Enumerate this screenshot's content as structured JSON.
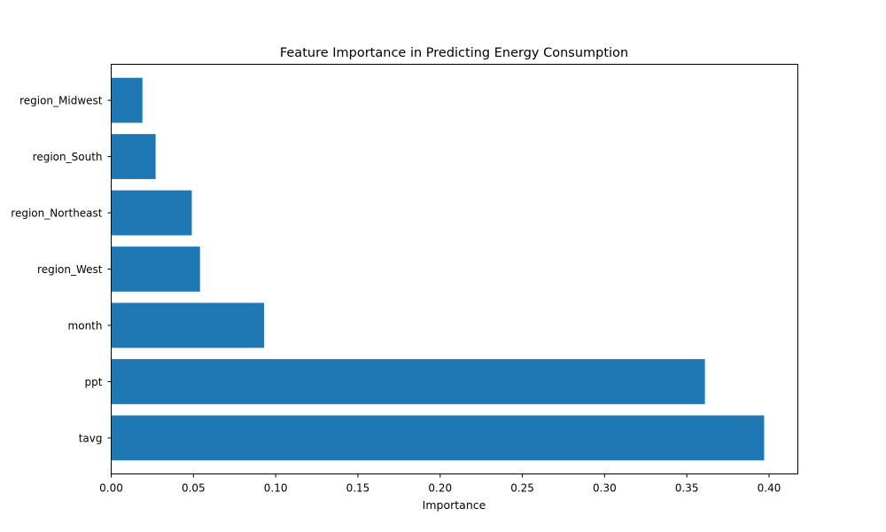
{
  "chart_data": {
    "type": "bar",
    "orientation": "horizontal",
    "title": "Feature Importance in Predicting Energy Consumption",
    "xlabel": "Importance",
    "ylabel": "",
    "categories": [
      "tavg",
      "ppt",
      "month",
      "region_West",
      "region_Northeast",
      "region_South",
      "region_Midwest"
    ],
    "values": [
      0.397,
      0.361,
      0.093,
      0.054,
      0.049,
      0.027,
      0.019
    ],
    "xlim": [
      0.0,
      0.4175
    ],
    "xticks": [
      0.0,
      0.05,
      0.1,
      0.15,
      0.2,
      0.25,
      0.3,
      0.35,
      0.4
    ],
    "xtick_labels": [
      "0.00",
      "0.05",
      "0.10",
      "0.15",
      "0.20",
      "0.25",
      "0.30",
      "0.35",
      "0.40"
    ],
    "bar_color": "#1f77b4",
    "grid": false,
    "legend": "none"
  }
}
